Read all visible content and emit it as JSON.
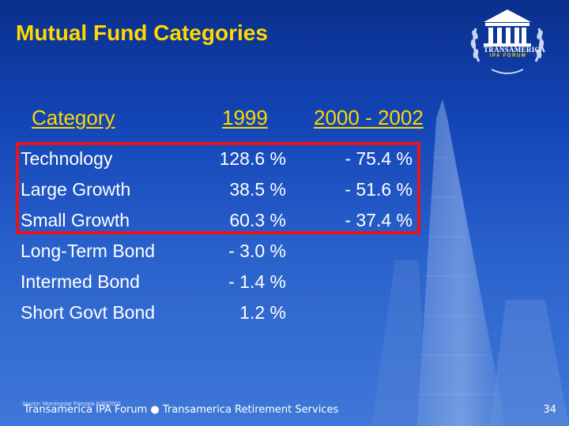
{
  "slide": {
    "title": "Mutual Fund Categories",
    "logo": {
      "icon": "temple-laurel-logo-icon",
      "name": "TRANSAMERICA",
      "sub": "IPA FORUM"
    },
    "table": {
      "headers": [
        "Category",
        "1999",
        "2000 - 2002"
      ],
      "rows": [
        {
          "category": "Technology",
          "y1999": "128.6 %",
          "y2000_2002": "- 75.4 %"
        },
        {
          "category": "Large Growth",
          "y1999": "38.5 %",
          "y2000_2002": "- 51.6 %"
        },
        {
          "category": "Small Growth",
          "y1999": "60.3 %",
          "y2000_2002": "- 37.4 %"
        },
        {
          "category": "Long-Term Bond",
          "y1999": "- 3.0 %",
          "y2000_2002": ""
        },
        {
          "category": "Intermed Bond",
          "y1999": "- 1.4 %",
          "y2000_2002": ""
        },
        {
          "category": "Short Govt Bond",
          "y1999": "1.2 %",
          "y2000_2002": ""
        }
      ]
    },
    "highlight_color": "#e8141c",
    "source_note": "Source: Morningstar Principia 6/30/2002",
    "footer": "Transamerica IPA Forum ● Transamerica Retirement Services",
    "page_number": "34"
  }
}
